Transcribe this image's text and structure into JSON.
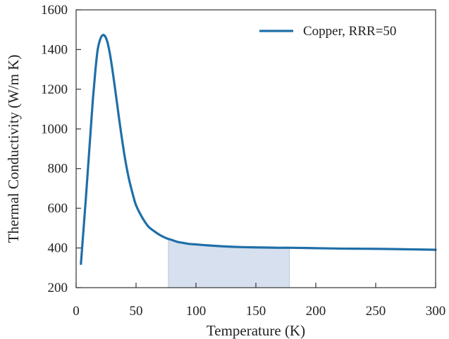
{
  "chart_data": {
    "type": "line",
    "title": "",
    "xlabel": "Temperature (K)",
    "ylabel": "Thermal Conductivity (W/m K)",
    "xlim": [
      0,
      300
    ],
    "ylim": [
      200,
      1600
    ],
    "xticks": [
      0,
      50,
      100,
      150,
      200,
      250,
      300
    ],
    "yticks": [
      200,
      400,
      600,
      800,
      1000,
      1200,
      1400,
      1600
    ],
    "grid": false,
    "legend": {
      "placement": "top-right"
    },
    "series": [
      {
        "name": "Copper, RRR=50",
        "color": "#1f6fa8",
        "x": [
          4,
          6,
          8,
          10,
          12,
          14,
          16,
          18,
          20,
          22,
          24,
          26,
          28,
          30,
          32,
          34,
          36,
          38,
          40,
          42,
          44,
          46,
          48,
          50,
          55,
          60,
          65,
          70,
          75,
          80,
          85,
          90,
          95,
          100,
          110,
          120,
          130,
          140,
          150,
          160,
          170,
          180,
          200,
          220,
          240,
          260,
          280,
          300
        ],
        "y": [
          320,
          480,
          640,
          810,
          980,
          1150,
          1290,
          1400,
          1450,
          1472,
          1468,
          1440,
          1385,
          1310,
          1225,
          1135,
          1045,
          960,
          880,
          810,
          750,
          700,
          655,
          615,
          555,
          510,
          485,
          465,
          450,
          440,
          430,
          425,
          420,
          418,
          413,
          409,
          406,
          404,
          403,
          402,
          401,
          401,
          399,
          397,
          396,
          395,
          393,
          391
        ]
      }
    ],
    "shaded_region": {
      "x_start": 77,
      "x_end": 178,
      "color": "#d6e0ef"
    }
  }
}
